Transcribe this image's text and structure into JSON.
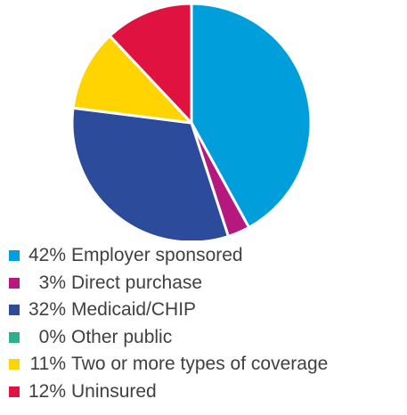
{
  "chart_data": {
    "type": "pie",
    "title": "",
    "slices": [
      {
        "label": "Employer sponsored",
        "value": 42,
        "value_label": "42%",
        "color": "#009fdb"
      },
      {
        "label": "Direct purchase",
        "value": 3,
        "value_label": "3%",
        "color": "#b5197e"
      },
      {
        "label": "Medicaid/CHIP",
        "value": 32,
        "value_label": "32%",
        "color": "#2d4b9b"
      },
      {
        "label": "Other public",
        "value": 0,
        "value_label": "0%",
        "color": "#2fad8f"
      },
      {
        "label": "Two or more types of coverage",
        "value": 11,
        "value_label": "11%",
        "color": "#ffd400"
      },
      {
        "label": "Uninsured",
        "value": 12,
        "value_label": "12%",
        "color": "#e0123f"
      }
    ],
    "legend_position": "bottom-left"
  }
}
